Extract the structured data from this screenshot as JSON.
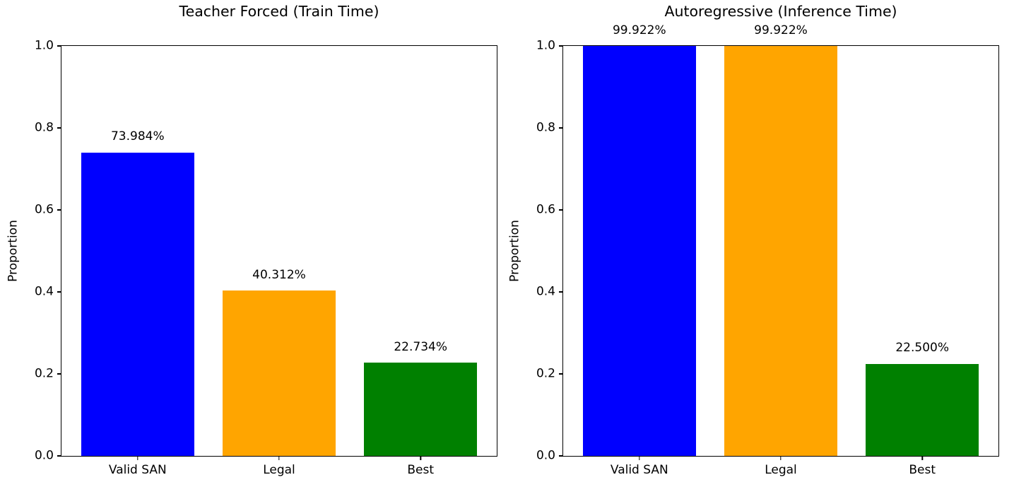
{
  "figure": {
    "background": "#ffffff",
    "text_color": "#000000"
  },
  "chart_data": [
    {
      "type": "bar",
      "title": "Teacher Forced (Train Time)",
      "xlabel": "",
      "ylabel": "Proportion",
      "categories": [
        "Valid SAN",
        "Legal",
        "Best"
      ],
      "values": [
        0.73984,
        0.40312,
        0.22734
      ],
      "value_labels": [
        "73.984%",
        "40.312%",
        "22.734%"
      ],
      "bar_colors": [
        "#0000ff",
        "#ffa500",
        "#008000"
      ],
      "ylim": [
        0.0,
        1.0
      ],
      "yticks": [
        0.0,
        0.2,
        0.4,
        0.6,
        0.8,
        1.0
      ],
      "ytick_labels": [
        "0.0",
        "0.2",
        "0.4",
        "0.6",
        "0.8",
        "1.0"
      ],
      "grid": false,
      "legend": null
    },
    {
      "type": "bar",
      "title": "Autoregressive (Inference Time)",
      "xlabel": "",
      "ylabel": "Proportion",
      "categories": [
        "Valid SAN",
        "Legal",
        "Best"
      ],
      "values": [
        0.99922,
        0.99922,
        0.225
      ],
      "value_labels": [
        "99.922%",
        "99.922%",
        "22.500%"
      ],
      "bar_colors": [
        "#0000ff",
        "#ffa500",
        "#008000"
      ],
      "ylim": [
        0.0,
        1.0
      ],
      "yticks": [
        0.0,
        0.2,
        0.4,
        0.6,
        0.8,
        1.0
      ],
      "ytick_labels": [
        "0.0",
        "0.2",
        "0.4",
        "0.6",
        "0.8",
        "1.0"
      ],
      "grid": false,
      "legend": null
    }
  ]
}
